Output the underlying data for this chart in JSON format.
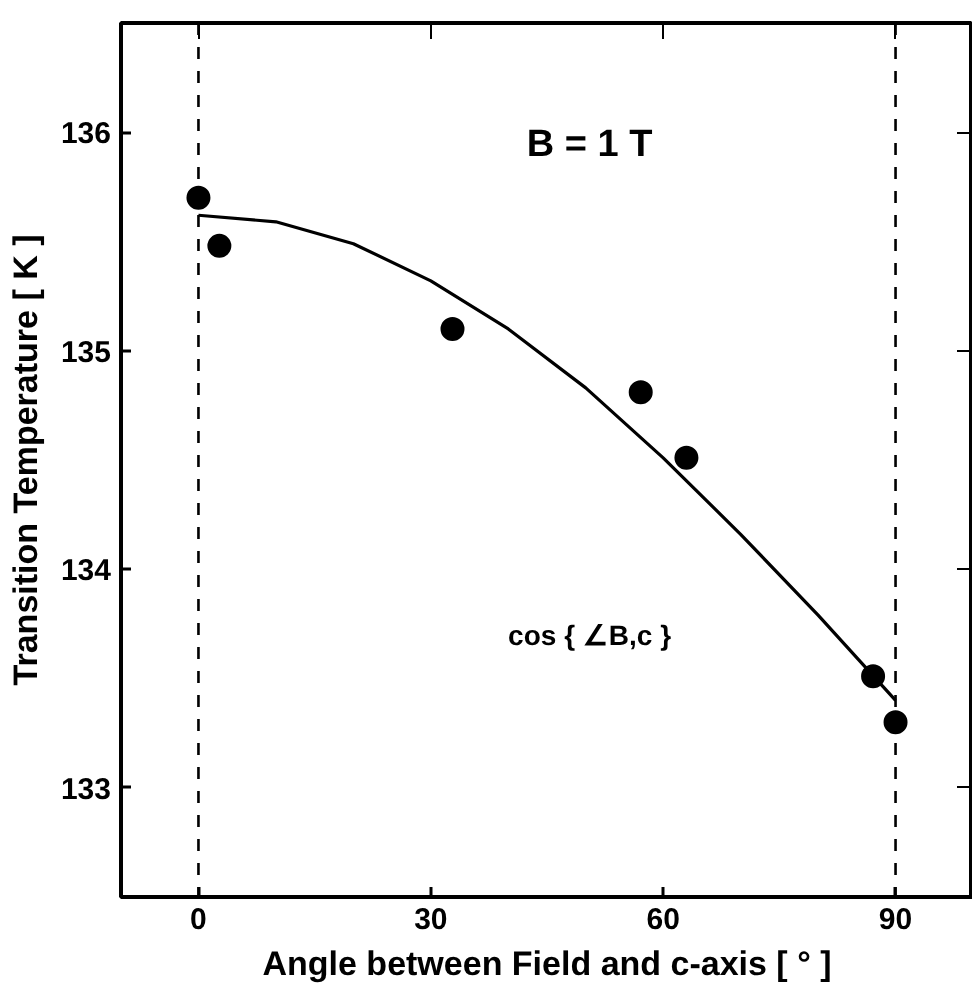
{
  "chart_data": {
    "type": "scatter",
    "xlabel": "Angle between Field and c-axis [ ° ]",
    "ylabel": "Transition Temperature [ K ]",
    "annotations": [
      "B = 1 T",
      "cos { ∠B,c }"
    ],
    "x": [
      0,
      2.7,
      32.8,
      57.1,
      63,
      87.1,
      90
    ],
    "series": [
      {
        "color": "#000000",
        "values": [
          135.7,
          135.48,
          135.1,
          134.81,
          134.51,
          133.51,
          133.3
        ]
      },
      {
        "type": "line",
        "marker": "none",
        "color": "#000000",
        "x": [
          0,
          10,
          20,
          30,
          40,
          50,
          60,
          70,
          80,
          90
        ],
        "values": [
          135.62,
          135.59,
          135.49,
          135.32,
          135.1,
          134.83,
          134.51,
          134.16,
          133.79,
          133.4
        ]
      }
    ],
    "xlim": [
      -10,
      100
    ],
    "ylim": [
      132.5,
      136.5
    ],
    "xticks": [
      0,
      30,
      60,
      90
    ],
    "yticks": [
      133,
      134,
      135,
      136
    ],
    "ref_lines": [
      {
        "axis": "x",
        "value": 0,
        "color": "#000000",
        "line_style": "dashed"
      },
      {
        "axis": "x",
        "value": 90,
        "color": "#000000",
        "line_style": "dashed"
      }
    ],
    "marker": "circle",
    "grid": false
  }
}
